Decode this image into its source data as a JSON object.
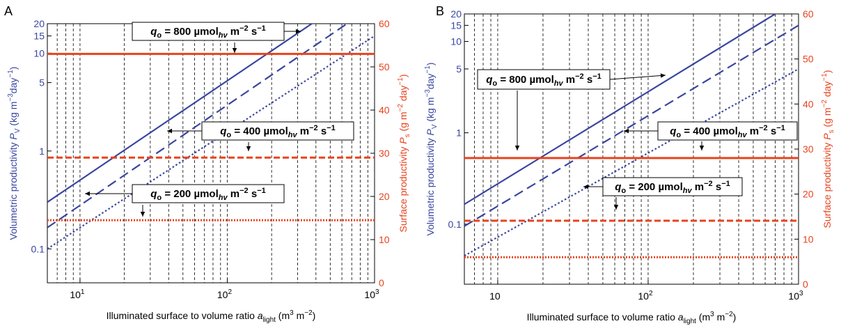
{
  "colors": {
    "blue": "#3a46a0",
    "red": "#e8431e",
    "grid": "#000000"
  },
  "chart_data": [
    {
      "panel": "A",
      "type": "line",
      "xscale": "log",
      "xlim": [
        6,
        1000
      ],
      "xticks": [
        "10^1",
        "10^2",
        "10^3"
      ],
      "xlabel": "Illuminated surface to volume ratio a_light (m^3 m^-2)",
      "y_left": {
        "label": "Volumetric productivity P_V (kg m^-3 day^-1)",
        "scale": "log",
        "lim": [
          0.045,
          20
        ],
        "ticks": [
          "0.1",
          "1",
          "5",
          "10",
          "15",
          "20"
        ]
      },
      "y_right": {
        "label": "Surface productivity P_S (g m^-2 day^-1)",
        "scale": "linear",
        "lim": [
          0,
          60
        ],
        "ticks": [
          "0",
          "10",
          "20",
          "30",
          "40",
          "50",
          "60"
        ]
      },
      "grid": "vertical dashed",
      "series": [
        {
          "name": "q_o = 800 µmol_hv m^-2 s^-1",
          "axis": "left",
          "style": "solid",
          "x": [
            6,
            375
          ],
          "y": [
            0.3,
            20
          ]
        },
        {
          "name": "q_o = 400 µmol_hv m^-2 s^-1",
          "axis": "left",
          "style": "dashed",
          "x": [
            6,
            650
          ],
          "y": [
            0.165,
            20
          ]
        },
        {
          "name": "q_o = 200 µmol_hv m^-2 s^-1",
          "axis": "left",
          "style": "dotted",
          "x": [
            6,
            1000
          ],
          "y": [
            0.1,
            15
          ]
        },
        {
          "name": "q_o = 800 µmol_hv m^-2 s^-1",
          "axis": "right",
          "style": "solid",
          "x": [
            6,
            1000
          ],
          "y": [
            53,
            53
          ]
        },
        {
          "name": "q_o = 400 µmol_hv m^-2 s^-1",
          "axis": "right",
          "style": "dashed",
          "x": [
            6,
            1000
          ],
          "y": [
            29,
            29
          ]
        },
        {
          "name": "q_o = 200 µmol_hv m^-2 s^-1",
          "axis": "right",
          "style": "dotted",
          "x": [
            6,
            1000
          ],
          "y": [
            14.5,
            14.5
          ]
        }
      ],
      "annotations": [
        {
          "q": "800"
        },
        {
          "q": "400"
        },
        {
          "q": "200"
        }
      ]
    },
    {
      "panel": "B",
      "type": "line",
      "xscale": "log",
      "xlim": [
        6,
        1000
      ],
      "xticks": [
        "10",
        "10^2",
        "10^3"
      ],
      "xlabel": "Illuminated surface to volume ratio a_light (m^3 m^-2)",
      "y_left": {
        "label": "Volumetric productivity P_V (kg m^-3 day^-1)",
        "scale": "log",
        "lim": [
          0.022,
          20
        ],
        "ticks": [
          "0.1",
          "1",
          "5",
          "10",
          "15",
          "20"
        ]
      },
      "y_right": {
        "label": "Surface productivity P_S (g m^-2 day^-1)",
        "scale": "linear",
        "lim": [
          0,
          60
        ],
        "ticks": [
          "0",
          "10",
          "20",
          "30",
          "40",
          "50",
          "60"
        ]
      },
      "grid": "vertical dashed",
      "series": [
        {
          "name": "q_o = 800 µmol_hv m^-2 s^-1",
          "axis": "left",
          "style": "solid",
          "x": [
            6,
            700
          ],
          "y": [
            0.165,
            20
          ]
        },
        {
          "name": "q_o = 400 µmol_hv m^-2 s^-1",
          "axis": "left",
          "style": "dashed",
          "x": [
            6,
            1000
          ],
          "y": [
            0.095,
            15
          ]
        },
        {
          "name": "q_o = 200 µmol_hv m^-2 s^-1",
          "axis": "left",
          "style": "dotted",
          "x": [
            6,
            1000
          ],
          "y": [
            0.045,
            5
          ]
        },
        {
          "name": "q_o = 800 µmol_hv m^-2 s^-1",
          "axis": "right",
          "style": "solid",
          "x": [
            6,
            1000
          ],
          "y": [
            28,
            28
          ]
        },
        {
          "name": "q_o = 400 µmol_hv m^-2 s^-1",
          "axis": "right",
          "style": "dashed",
          "x": [
            6,
            1000
          ],
          "y": [
            14.1,
            14.1
          ]
        },
        {
          "name": "q_o = 200 µmol_hv m^-2 s^-1",
          "axis": "right",
          "style": "dotted",
          "x": [
            6,
            1000
          ],
          "y": [
            6,
            6
          ]
        }
      ],
      "annotations": [
        {
          "q": "800"
        },
        {
          "q": "400"
        },
        {
          "q": "200"
        }
      ]
    }
  ],
  "text": {
    "panel_a": "A",
    "panel_b": "B",
    "annot_prefix": "q",
    "annot_sub": "o",
    "annot_eq": " = ",
    "annot_unit1": " µmol",
    "annot_unit_sub": "hv",
    "annot_unit2": " m",
    "annot_exp1": "−2",
    "annot_unit3": " s",
    "annot_exp2": "−1",
    "ylabel_left_main": "Volumetric productivity ",
    "ylabel_left_sym": "P",
    "ylabel_left_sub": "V",
    "ylabel_left_unit": " (kg m",
    "ylabel_left_exp1": "−3",
    "ylabel_left_unit2": "day",
    "ylabel_left_exp2": "−1",
    "ylabel_left_close": ")",
    "ylabel_right_main": "Surface productivity ",
    "ylabel_right_sym": "P",
    "ylabel_right_sub": "s",
    "ylabel_right_unit": " (g m",
    "ylabel_right_exp1": "−2",
    "ylabel_right_unit2": " day",
    "ylabel_right_exp2": "−1",
    "ylabel_right_close": ")",
    "xlabel_main": "Illuminated surface to volume ratio ",
    "xlabel_sym": "a",
    "xlabel_sub": "light",
    "xlabel_unit": " (m",
    "xlabel_exp1": "3",
    "xlabel_unit2": " m",
    "xlabel_exp2": "−2",
    "xlabel_close": ")"
  }
}
